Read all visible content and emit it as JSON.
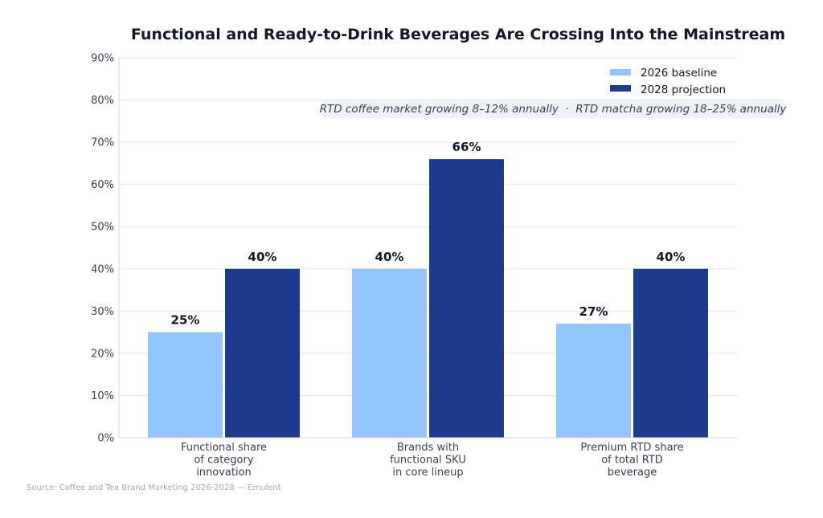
{
  "chart_data": {
    "type": "bar",
    "title": "Functional and Ready-to-Drink Beverages Are Crossing Into the Mainstream",
    "categories": [
      [
        "Functional share",
        "of category",
        "innovation"
      ],
      [
        "Brands with",
        "functional SKU",
        "in core lineup"
      ],
      [
        "Premium RTD share",
        "of total RTD",
        "beverage"
      ]
    ],
    "series": [
      {
        "name": "2026 baseline",
        "values": [
          25,
          40,
          27
        ],
        "color": "#93c5fd",
        "labels": [
          "25%",
          "40%",
          "27%"
        ]
      },
      {
        "name": "2028 projection",
        "values": [
          40,
          66,
          40
        ],
        "color": "#1e3a8a",
        "labels": [
          "40%",
          "66%",
          "40%"
        ]
      }
    ],
    "ylim": [
      0,
      90
    ],
    "yticks": [
      "0%",
      "10%",
      "20%",
      "30%",
      "40%",
      "50%",
      "60%",
      "70%",
      "80%",
      "90%"
    ],
    "grid": true,
    "legend": "top-right",
    "annotation": "RTD coffee market growing 8–12% annually  ·  RTD matcha growing 18–25% annually",
    "source": "Source: Coffee and Tea Brand Marketing 2026-2028 — Emulent"
  }
}
